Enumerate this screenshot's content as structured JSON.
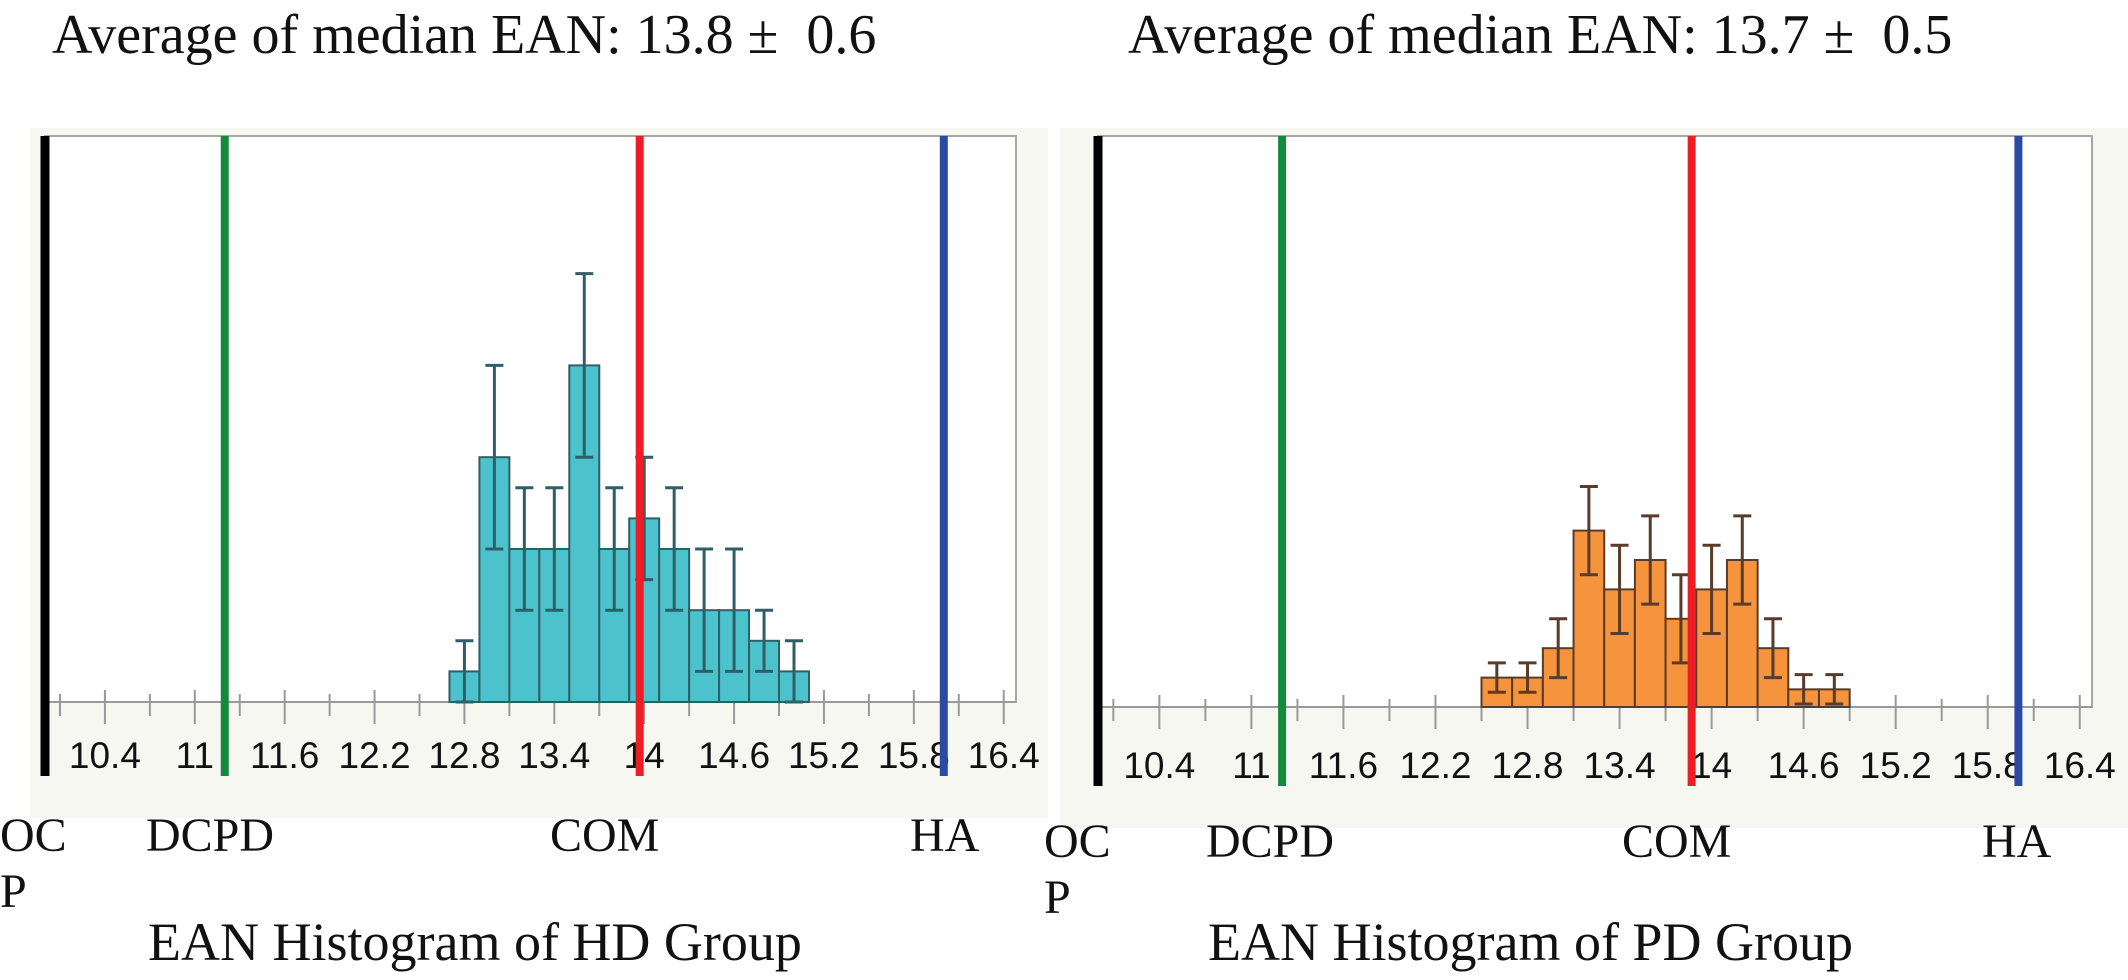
{
  "panels": [
    {
      "title": "Average of median EAN: 13.8 ±  0.6",
      "caption": "EAN Histogram of HD Group",
      "labels": {
        "ocp": "OC\nP",
        "dcpd": "DCPD",
        "com": "COM",
        "ha": "HA"
      }
    },
    {
      "title": "Average of median EAN: 13.7 ±  0.5",
      "caption": "EAN Histogram of PD Group",
      "labels": {
        "ocp": "OC\nP",
        "dcpd": "DCPD",
        "com": "COM",
        "ha": "HA"
      }
    }
  ],
  "chart_data": [
    {
      "type": "bar",
      "title": "Average of median EAN: 13.8 ±  0.6",
      "xlabel": "EAN Histogram of HD Group",
      "xlim": [
        10.0,
        16.4
      ],
      "ticks": [
        10.4,
        11,
        11.6,
        12.2,
        12.8,
        13.4,
        14,
        14.6,
        15.2,
        15.8,
        16.4
      ],
      "bar_color": "#4cc3cc",
      "error_color": "#2f5f66",
      "bin_width": 0.2,
      "bins": [
        12.8,
        13.0,
        13.2,
        13.4,
        13.6,
        13.8,
        14.0,
        14.2,
        14.4,
        14.6,
        14.8,
        15.0,
        15.2
      ],
      "values": [
        1,
        8,
        5,
        5,
        11,
        5,
        6,
        5,
        3,
        3,
        2,
        1,
        0
      ],
      "errors": [
        1,
        3,
        2,
        2,
        3,
        2,
        2,
        2,
        2,
        2,
        1,
        1,
        0
      ],
      "reference_lines": [
        {
          "label": "OCP",
          "x": 10.0,
          "color": "#000000"
        },
        {
          "label": "DCPD",
          "x": 11.2,
          "color": "#138a3c"
        },
        {
          "label": "COM",
          "x": 13.97,
          "color": "#ee1c24"
        },
        {
          "label": "HA",
          "x": 16.0,
          "color": "#2b4aa5"
        }
      ]
    },
    {
      "type": "bar",
      "title": "Average of median EAN: 13.7 ±  0.5",
      "xlabel": "EAN Histogram of PD Group",
      "xlim": [
        10.0,
        16.4
      ],
      "ticks": [
        10.4,
        11,
        11.6,
        12.2,
        12.8,
        13.4,
        14,
        14.6,
        15.2,
        15.8,
        16.4
      ],
      "bar_color": "#f5943d",
      "error_color": "#5a3a28",
      "bin_width": 0.2,
      "bins": [
        12.6,
        12.8,
        13.0,
        13.2,
        13.4,
        13.6,
        13.8,
        14.0,
        14.2,
        14.4,
        14.6,
        14.8
      ],
      "values": [
        1,
        1,
        2,
        6,
        4,
        5,
        3,
        4,
        5,
        2,
        0.6,
        0.6
      ],
      "errors": [
        0.5,
        0.5,
        1,
        1.5,
        1.5,
        1.5,
        1.5,
        1.5,
        1.5,
        1,
        0.5,
        0.5
      ],
      "reference_lines": [
        {
          "label": "OCP",
          "x": 10.0,
          "color": "#000000"
        },
        {
          "label": "DCPD",
          "x": 11.2,
          "color": "#138a3c"
        },
        {
          "label": "COM",
          "x": 13.87,
          "color": "#ee1c24"
        },
        {
          "label": "HA",
          "x": 16.0,
          "color": "#2b4aa5"
        }
      ]
    }
  ]
}
